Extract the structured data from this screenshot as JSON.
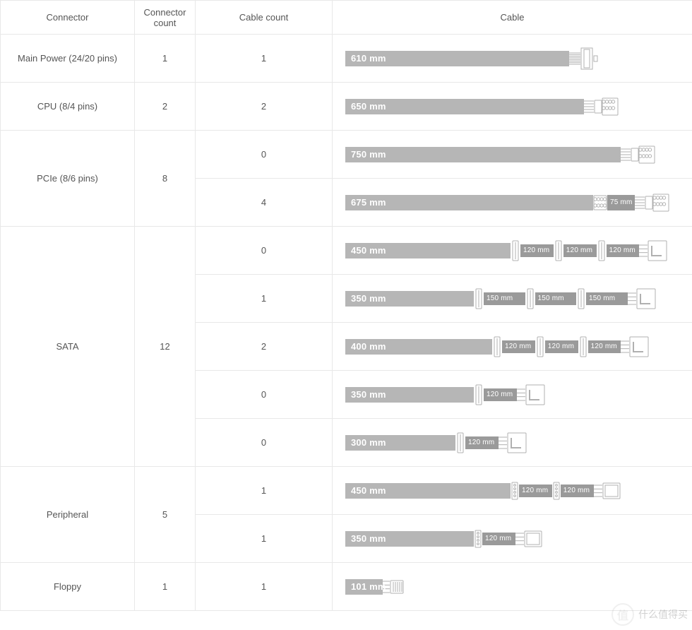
{
  "columns": {
    "connector": "Connector",
    "connector_count": "Connector count",
    "cable_count": "Cable count",
    "cable": "Cable"
  },
  "pxPerMm": 0.52,
  "segLabelSuffix": " mm",
  "colors": {
    "cell_border": "#e8e8e8",
    "text": "#555555",
    "seg_light": "#b6b6b6",
    "seg_dark": "#9a9a9a",
    "label_text": "#ffffff",
    "connector_stroke": "#b0b0b0",
    "connector_fill": "#ffffff"
  },
  "rows": [
    {
      "name": "Main Power (24/20 pins)",
      "count": "1",
      "cables": [
        {
          "cable_count": "1",
          "segments": [
            {
              "len": 610,
              "dark": false
            }
          ],
          "endConnector": "atx24"
        }
      ]
    },
    {
      "name": "CPU (8/4 pins)",
      "count": "2",
      "cables": [
        {
          "cable_count": "2",
          "segments": [
            {
              "len": 650,
              "dark": false
            }
          ],
          "endConnector": "cpu8"
        }
      ]
    },
    {
      "name": "PCIe (8/6 pins)",
      "count": "8",
      "cables": [
        {
          "cable_count": "0",
          "segments": [
            {
              "len": 750,
              "dark": false
            }
          ],
          "endConnector": "pcie8"
        },
        {
          "cable_count": "4",
          "segments": [
            {
              "len": 675,
              "dark": false
            }
          ],
          "midConnector": "pcie_small",
          "segmentsAfter": [
            {
              "len": 75,
              "dark": true,
              "small": true
            }
          ],
          "endConnector": "pcie8"
        }
      ]
    },
    {
      "name": "SATA",
      "count": "12",
      "cables": [
        {
          "cable_count": "0",
          "segments": [
            {
              "len": 450,
              "dark": false
            }
          ],
          "tail": [
            {
              "conn": "sata_mid",
              "len": 120,
              "dark": true
            },
            {
              "conn": "sata_mid",
              "len": 120,
              "dark": true
            },
            {
              "conn": "sata_mid",
              "len": 120,
              "dark": true
            }
          ],
          "endConnector": "sata_right"
        },
        {
          "cable_count": "1",
          "segments": [
            {
              "len": 350,
              "dark": false
            }
          ],
          "tail": [
            {
              "conn": "sata_mid",
              "len": 150,
              "dark": true
            },
            {
              "conn": "sata_mid",
              "len": 150,
              "dark": true
            },
            {
              "conn": "sata_mid",
              "len": 150,
              "dark": true
            }
          ],
          "endConnector": "sata_right"
        },
        {
          "cable_count": "2",
          "segments": [
            {
              "len": 400,
              "dark": false
            }
          ],
          "tail": [
            {
              "conn": "sata_mid",
              "len": 120,
              "dark": true
            },
            {
              "conn": "sata_mid",
              "len": 120,
              "dark": true
            },
            {
              "conn": "sata_mid",
              "len": 120,
              "dark": true
            }
          ],
          "endConnector": "sata_right"
        },
        {
          "cable_count": "0",
          "segments": [
            {
              "len": 350,
              "dark": false
            }
          ],
          "tail": [
            {
              "conn": "sata_mid",
              "len": 120,
              "dark": true
            }
          ],
          "endConnector": "sata_right"
        },
        {
          "cable_count": "0",
          "segments": [
            {
              "len": 300,
              "dark": false
            }
          ],
          "tail": [
            {
              "conn": "sata_mid",
              "len": 120,
              "dark": true
            }
          ],
          "endConnector": "sata_right"
        }
      ]
    },
    {
      "name": "Peripheral",
      "count": "5",
      "cables": [
        {
          "cable_count": "1",
          "segments": [
            {
              "len": 450,
              "dark": false
            }
          ],
          "tail": [
            {
              "conn": "molex_mid",
              "len": 120,
              "dark": true
            },
            {
              "conn": "molex_mid",
              "len": 120,
              "dark": true
            }
          ],
          "endConnector": "molex"
        },
        {
          "cable_count": "1",
          "segments": [
            {
              "len": 350,
              "dark": false
            }
          ],
          "tail": [
            {
              "conn": "molex_mid",
              "len": 120,
              "dark": true
            }
          ],
          "endConnector": "molex"
        }
      ]
    },
    {
      "name": "Floppy",
      "count": "1",
      "cables": [
        {
          "cable_count": "1",
          "segments": [
            {
              "len": 101,
              "dark": false,
              "small": false
            }
          ],
          "endConnector": "floppy"
        }
      ]
    }
  ],
  "watermark": "什么值得买"
}
